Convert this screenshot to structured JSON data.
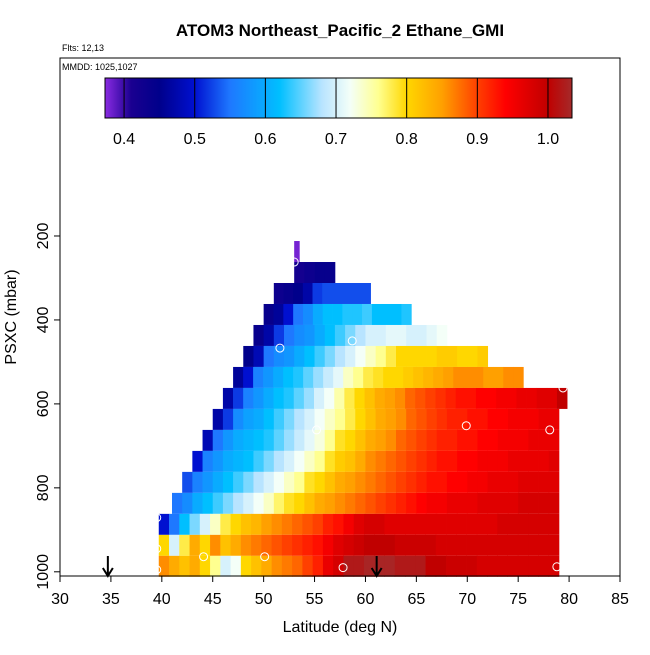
{
  "chart_data": {
    "type": "curtain",
    "title": "ATOM3 Northeast_Pacific_2 Ethane_GMI",
    "subtitle": "Flts: 12,13",
    "annotation": "MMDD: 1025,1027",
    "xlabel": "Latitude (deg N)",
    "ylabel": "PSXC (mbar)",
    "xlim": [
      30,
      85
    ],
    "ylim": [
      1010,
      -224
    ],
    "xticks": [
      30,
      35,
      40,
      45,
      50,
      55,
      60,
      65,
      70,
      75,
      80,
      85
    ],
    "yticks": [
      200,
      400,
      600,
      800,
      1000
    ],
    "clim": [
      0.373,
      1.034
    ],
    "cticks": [
      0.4,
      0.5,
      0.6,
      0.7,
      0.8,
      0.9,
      {
        "value": 1,
        "label": "1.0"
      }
    ],
    "colorscale": [
      {
        "value": 0.373,
        "color": "#8a2be2"
      },
      {
        "value": 0.41,
        "color": "#1a0090"
      },
      {
        "value": 0.45,
        "color": "#00008b"
      },
      {
        "value": 0.5,
        "color": "#0010d0"
      },
      {
        "value": 0.55,
        "color": "#1e78ff"
      },
      {
        "value": 0.62,
        "color": "#00bfff"
      },
      {
        "value": 0.68,
        "color": "#b8e4ff"
      },
      {
        "value": 0.72,
        "color": "#f4fff8"
      },
      {
        "value": 0.76,
        "color": "#ffff90"
      },
      {
        "value": 0.8,
        "color": "#ffd700"
      },
      {
        "value": 0.85,
        "color": "#ffa000"
      },
      {
        "value": 0.9,
        "color": "#ff4000"
      },
      {
        "value": 0.94,
        "color": "#ff0000"
      },
      {
        "value": 1.0,
        "color": "#c00000"
      },
      {
        "value": 1.034,
        "color": "#a52a2a"
      }
    ],
    "rows": [
      {
        "pressure": [
          212,
          262
        ],
        "lat_range": [
          53,
          53.5
        ],
        "values": [
          0.38
        ]
      },
      {
        "pressure": [
          262,
          312
        ],
        "lat_range": [
          53,
          57
        ],
        "values": [
          0.42,
          0.43,
          0.44,
          0.44
        ]
      },
      {
        "pressure": [
          312,
          362
        ],
        "lat_range": [
          51,
          60.5
        ],
        "values": [
          0.43,
          0.44,
          0.45,
          0.47,
          0.52,
          0.53,
          0.53,
          0.53,
          0.53,
          0.53
        ]
      },
      {
        "pressure": [
          362,
          412
        ],
        "lat_range": [
          50,
          64.5
        ],
        "values": [
          0.44,
          0.46,
          0.5,
          0.55,
          0.57,
          0.6,
          0.62,
          0.62,
          0.63,
          0.63,
          0.64,
          0.62,
          0.62,
          0.62,
          0.63
        ]
      },
      {
        "pressure": [
          412,
          462
        ],
        "lat_range": [
          49,
          68
        ],
        "values": [
          0.44,
          0.47,
          0.52,
          0.55,
          0.57,
          0.58,
          0.6,
          0.62,
          0.64,
          0.66,
          0.68,
          0.7,
          0.7,
          0.71,
          0.71,
          0.7,
          0.7,
          0.71,
          0.72
        ]
      },
      {
        "pressure": [
          462,
          512
        ],
        "lat_range": [
          48,
          72
        ],
        "values": [
          0.45,
          0.48,
          0.55,
          0.57,
          0.58,
          0.6,
          0.62,
          0.64,
          0.66,
          0.68,
          0.7,
          0.72,
          0.74,
          0.76,
          0.78,
          0.8,
          0.8,
          0.8,
          0.8,
          0.81,
          0.81,
          0.8,
          0.8,
          0.81
        ]
      },
      {
        "pressure": [
          512,
          562
        ],
        "lat_range": [
          47,
          75.5
        ],
        "values": [
          0.46,
          0.5,
          0.56,
          0.58,
          0.6,
          0.62,
          0.63,
          0.65,
          0.67,
          0.69,
          0.71,
          0.74,
          0.76,
          0.78,
          0.79,
          0.8,
          0.8,
          0.81,
          0.82,
          0.83,
          0.84,
          0.85,
          0.86,
          0.86,
          0.86,
          0.85,
          0.85,
          0.86,
          0.86
        ]
      },
      {
        "pressure": [
          562,
          612
        ],
        "lat_range": [
          46,
          79.8
        ],
        "values": [
          0.47,
          0.52,
          0.56,
          0.58,
          0.6,
          0.62,
          0.63,
          0.65,
          0.67,
          0.7,
          0.72,
          0.75,
          0.78,
          0.8,
          0.82,
          0.84,
          0.85,
          0.86,
          0.88,
          0.89,
          0.9,
          0.91,
          0.92,
          0.93,
          0.93,
          0.94,
          0.94,
          0.95,
          0.95,
          0.96,
          0.96,
          0.97,
          0.97,
          1.0
        ]
      },
      {
        "pressure": [
          612,
          662
        ],
        "lat_range": [
          45,
          79
        ],
        "values": [
          0.47,
          0.52,
          0.57,
          0.59,
          0.6,
          0.62,
          0.64,
          0.66,
          0.68,
          0.7,
          0.72,
          0.74,
          0.76,
          0.78,
          0.8,
          0.82,
          0.84,
          0.85,
          0.86,
          0.88,
          0.89,
          0.9,
          0.91,
          0.92,
          0.92,
          0.93,
          0.93,
          0.94,
          0.94,
          0.95,
          0.95,
          0.95,
          0.96,
          0.96
        ]
      },
      {
        "pressure": [
          662,
          712
        ],
        "lat_range": [
          44,
          79
        ],
        "values": [
          0.48,
          0.55,
          0.58,
          0.6,
          0.61,
          0.62,
          0.63,
          0.65,
          0.67,
          0.69,
          0.71,
          0.73,
          0.76,
          0.79,
          0.8,
          0.82,
          0.84,
          0.85,
          0.86,
          0.88,
          0.89,
          0.9,
          0.91,
          0.92,
          0.92,
          0.93,
          0.93,
          0.94,
          0.94,
          0.95,
          0.95,
          0.95,
          0.96,
          0.96,
          0.96
        ]
      },
      {
        "pressure": [
          712,
          762
        ],
        "lat_range": [
          43,
          79
        ],
        "values": [
          0.5,
          0.56,
          0.58,
          0.6,
          0.61,
          0.62,
          0.64,
          0.66,
          0.68,
          0.7,
          0.72,
          0.74,
          0.76,
          0.79,
          0.81,
          0.82,
          0.84,
          0.86,
          0.87,
          0.88,
          0.89,
          0.9,
          0.91,
          0.92,
          0.93,
          0.93,
          0.94,
          0.94,
          0.95,
          0.95,
          0.95,
          0.96,
          0.96,
          0.96,
          0.96,
          0.97
        ]
      },
      {
        "pressure": [
          762,
          812
        ],
        "lat_range": [
          42,
          79
        ],
        "values": [
          0.53,
          0.56,
          0.58,
          0.6,
          0.62,
          0.64,
          0.66,
          0.68,
          0.7,
          0.72,
          0.74,
          0.76,
          0.79,
          0.8,
          0.82,
          0.84,
          0.85,
          0.86,
          0.87,
          0.88,
          0.89,
          0.9,
          0.91,
          0.92,
          0.93,
          0.93,
          0.94,
          0.94,
          0.95,
          0.95,
          0.96,
          0.96,
          0.96,
          0.97,
          0.97,
          0.97,
          0.97
        ]
      },
      {
        "pressure": [
          812,
          862
        ],
        "lat_range": [
          41,
          79
        ],
        "values": [
          0.55,
          0.57,
          0.6,
          0.62,
          0.64,
          0.66,
          0.68,
          0.7,
          0.72,
          0.74,
          0.77,
          0.79,
          0.8,
          0.82,
          0.84,
          0.85,
          0.86,
          0.87,
          0.88,
          0.89,
          0.9,
          0.91,
          0.92,
          0.93,
          0.94,
          0.95,
          0.95,
          0.96,
          0.96,
          0.96,
          0.97,
          0.97,
          0.97,
          0.97,
          0.98,
          0.98,
          0.98,
          0.98
        ]
      },
      {
        "pressure": [
          862,
          912
        ],
        "lat_range": [
          39.7,
          79
        ],
        "values": [
          0.5,
          0.55,
          0.62,
          0.66,
          0.7,
          0.74,
          0.78,
          0.8,
          0.82,
          0.83,
          0.85,
          0.86,
          0.87,
          0.88,
          0.89,
          0.9,
          0.92,
          0.93,
          0.95,
          0.97,
          0.98,
          0.98,
          0.97,
          0.97,
          0.97,
          0.97,
          0.97,
          0.97,
          0.97,
          0.97,
          0.97,
          0.97,
          0.97,
          0.98,
          0.98,
          0.98,
          0.98,
          0.98,
          0.98
        ]
      },
      {
        "pressure": [
          912,
          962
        ],
        "lat_range": [
          39.7,
          79
        ],
        "values": [
          0.8,
          0.7,
          0.78,
          0.84,
          0.8,
          0.86,
          0.82,
          0.84,
          0.86,
          0.87,
          0.88,
          0.89,
          0.9,
          0.91,
          0.92,
          0.93,
          0.95,
          0.97,
          0.98,
          0.99,
          1.0,
          1.0,
          1.0,
          0.99,
          0.99,
          0.99,
          0.99,
          0.98,
          0.98,
          0.98,
          0.98,
          0.98,
          0.98,
          0.98,
          0.98,
          0.98,
          0.98,
          0.98,
          0.98
        ]
      },
      {
        "pressure": [
          962,
          1012
        ],
        "lat_range": [
          39.7,
          79
        ],
        "values": [
          0.86,
          0.84,
          0.82,
          0.84,
          0.8,
          0.76,
          0.7,
          0.72,
          0.8,
          0.82,
          0.84,
          0.86,
          0.87,
          0.88,
          0.9,
          0.92,
          0.96,
          0.98,
          1.02,
          1.02,
          1.03,
          1.03,
          1.03,
          1.02,
          1.02,
          1.02,
          1.0,
          1.0,
          0.99,
          0.99,
          0.99,
          0.98,
          0.98,
          0.98,
          0.98,
          0.98,
          0.98,
          0.98,
          0.98
        ]
      }
    ],
    "points": {
      "x": [
        53.0,
        51.6,
        58.7,
        55.2,
        69.9,
        78.1,
        79.4,
        39.5,
        39.5,
        44.1,
        50.1,
        39.5,
        57.8,
        78.8
      ],
      "y": [
        262,
        467,
        450,
        662,
        652,
        662,
        562,
        871,
        945,
        964,
        964,
        995,
        990,
        988
      ]
    },
    "arrows": [
      34.7,
      61.1
    ]
  }
}
